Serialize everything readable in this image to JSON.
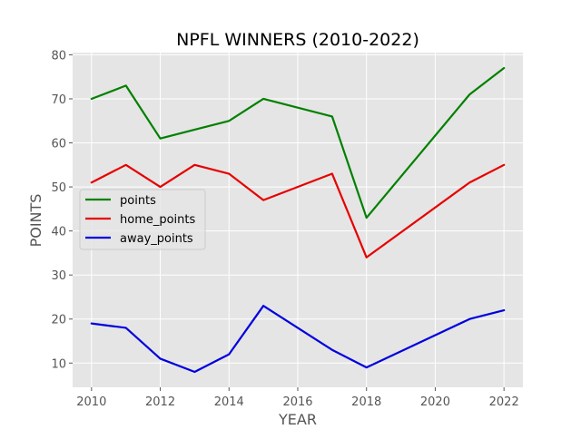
{
  "chart_data": {
    "type": "line",
    "title": "NPFL WINNERS (2010-2022)",
    "xlabel": "YEAR",
    "ylabel": "POINTS",
    "x": [
      2010,
      2011,
      2012,
      2013,
      2014,
      2015,
      2017,
      2018,
      2021,
      2022
    ],
    "xlim": [
      2009.45,
      2022.55
    ],
    "ylim": [
      4.5,
      80.5
    ],
    "xticks": [
      2010,
      2012,
      2014,
      2016,
      2018,
      2020,
      2022
    ],
    "yticks": [
      10,
      20,
      30,
      40,
      50,
      60,
      70,
      80
    ],
    "grid": true,
    "legend_position": "center-left",
    "series": [
      {
        "name": "points",
        "color": "#008000",
        "values": [
          70,
          73,
          61,
          63,
          65,
          70,
          66,
          43,
          71,
          77
        ]
      },
      {
        "name": "home_points",
        "color": "#e60000",
        "values": [
          51,
          55,
          50,
          55,
          53,
          47,
          53,
          34,
          51,
          55
        ]
      },
      {
        "name": "away_points",
        "color": "#0000e0",
        "values": [
          19,
          18,
          11,
          8,
          12,
          23,
          13,
          9,
          20,
          22
        ]
      }
    ]
  }
}
